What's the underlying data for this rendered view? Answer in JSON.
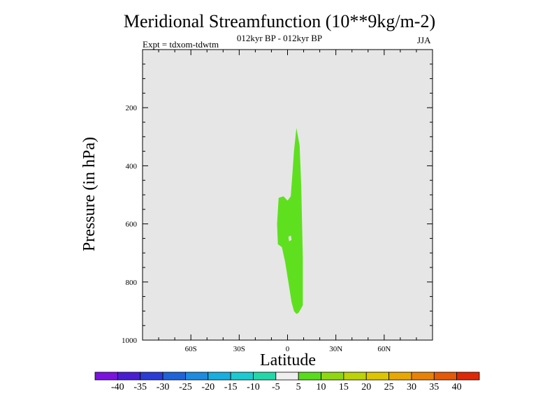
{
  "chart_data": {
    "type": "heatmap",
    "title": "Meridional Streamfunction (10**9kg/m-2)",
    "subtitle": "012kyr BP - 012kyr BP",
    "left_annotation": "Expt = tdxom-tdwtm",
    "right_annotation": "JJA",
    "xlabel": "Latitude",
    "ylabel": "Pressure (in hPa)",
    "xlim": [
      -90,
      90
    ],
    "ylim": [
      1000,
      0
    ],
    "x_ticks": [
      {
        "value": -60,
        "label": "60S"
      },
      {
        "value": -30,
        "label": "30S"
      },
      {
        "value": 0,
        "label": "0"
      },
      {
        "value": 30,
        "label": "30N"
      },
      {
        "value": 60,
        "label": "60N"
      }
    ],
    "y_ticks": [
      {
        "value": 200,
        "label": "200"
      },
      {
        "value": 400,
        "label": "400"
      },
      {
        "value": 600,
        "label": "600"
      },
      {
        "value": 800,
        "label": "800"
      },
      {
        "value": 1000,
        "label": "1000"
      }
    ],
    "background_color": "#e6e6e6",
    "colorbar": {
      "labels": [
        "-40",
        "-35",
        "-30",
        "-25",
        "-20",
        "-15",
        "-10",
        "-5",
        "5",
        "10",
        "15",
        "20",
        "25",
        "30",
        "35",
        "40"
      ],
      "colors": [
        "#7c12e0",
        "#4a1dd4",
        "#2b3bd8",
        "#1f63d9",
        "#1c8be0",
        "#18aedf",
        "#1ccbd2",
        "#22d8a8",
        "#efefef",
        "#58dc1c",
        "#8fd70e",
        "#bcd305",
        "#ddc500",
        "#e8a802",
        "#e88206",
        "#e45a06",
        "#de2806"
      ]
    },
    "regions": [
      {
        "value_range": "5 to 10",
        "color": "#5ee01f",
        "outline": [
          [
            -5.5,
            510
          ],
          [
            -2.5,
            505
          ],
          [
            0,
            520
          ],
          [
            2,
            505
          ],
          [
            3,
            430
          ],
          [
            4,
            350
          ],
          [
            5.5,
            270
          ],
          [
            7.5,
            330
          ],
          [
            8.5,
            470
          ],
          [
            9,
            600
          ],
          [
            9.5,
            720
          ],
          [
            9.5,
            880
          ],
          [
            8.5,
            890
          ],
          [
            7,
            905
          ],
          [
            5.5,
            910
          ],
          [
            4,
            900
          ],
          [
            2.5,
            870
          ],
          [
            0.5,
            800
          ],
          [
            -1.5,
            730
          ],
          [
            -3.5,
            680
          ],
          [
            -6,
            670
          ],
          [
            -6.5,
            600
          ]
        ],
        "hole": [
          [
            0.5,
            645
          ],
          [
            2,
            640
          ],
          [
            2.5,
            655
          ],
          [
            1,
            660
          ]
        ]
      }
    ]
  }
}
